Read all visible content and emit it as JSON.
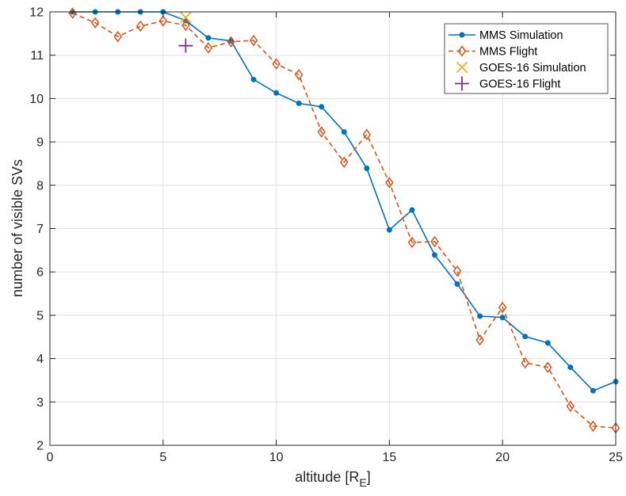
{
  "chart_data": {
    "type": "line",
    "xlabel": "altitude [R",
    "xlabel_sub": "E",
    "xlabel_end": "]",
    "ylabel": "number of visible SVs",
    "xlim": [
      0,
      25
    ],
    "ylim": [
      2,
      12
    ],
    "xticks": [
      0,
      5,
      10,
      15,
      20,
      25
    ],
    "yticks": [
      2,
      3,
      4,
      5,
      6,
      7,
      8,
      9,
      10,
      11,
      12
    ],
    "grid": true,
    "legend_position": "top-right",
    "series": [
      {
        "name": "MMS Simulation",
        "color": "#0072BD",
        "marker": "dot",
        "line": "solid",
        "x": [
          1,
          2,
          3,
          4,
          5,
          6,
          7,
          8,
          9,
          10,
          11,
          12,
          13,
          14,
          15,
          16,
          17,
          18,
          19,
          20,
          21,
          22,
          23,
          24,
          25
        ],
        "y": [
          12,
          12,
          12,
          12,
          12,
          11.8,
          11.4,
          11.33,
          10.44,
          10.13,
          9.89,
          9.81,
          9.23,
          8.39,
          6.97,
          7.43,
          6.39,
          5.72,
          4.98,
          4.95,
          4.51,
          4.36,
          3.8,
          3.26,
          3.47
        ]
      },
      {
        "name": "MMS Flight",
        "color": "#D95319",
        "marker": "diamond",
        "line": "dashed",
        "x": [
          1,
          2,
          3,
          4,
          5,
          6,
          7,
          8,
          9,
          10,
          11,
          12,
          13,
          14,
          15,
          16,
          17,
          18,
          19,
          20,
          21,
          22,
          23,
          24,
          25
        ],
        "y": [
          11.97,
          11.75,
          11.43,
          11.67,
          11.79,
          11.69,
          11.17,
          11.31,
          11.34,
          10.8,
          10.55,
          9.23,
          8.53,
          9.17,
          8.06,
          6.68,
          6.7,
          6.02,
          4.43,
          5.18,
          3.9,
          3.8,
          2.9,
          2.44,
          2.4
        ]
      },
      {
        "name": "GOES-16 Simulation",
        "color": "#EDB120",
        "marker": "x",
        "line": "none",
        "x": [
          6
        ],
        "y": [
          11.87
        ]
      },
      {
        "name": "GOES-16 Flight",
        "color": "#7E2F8E",
        "marker": "plus",
        "line": "none",
        "x": [
          6
        ],
        "y": [
          11.22
        ]
      }
    ]
  }
}
